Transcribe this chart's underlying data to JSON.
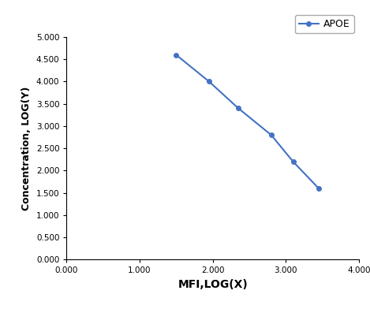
{
  "x": [
    1.5,
    1.95,
    2.35,
    2.8,
    3.1,
    3.45
  ],
  "y": [
    4.6,
    4.0,
    3.4,
    2.8,
    2.2,
    1.6
  ],
  "line_color": "#4472C4",
  "marker": "o",
  "marker_size": 4,
  "legend_label": "APOE",
  "xlabel": "MFI,LOG(X)",
  "ylabel": "Concentration, LOG(Y)",
  "xlim": [
    0.0,
    4.0
  ],
  "ylim": [
    0.0,
    5.0
  ],
  "xticks": [
    0.0,
    1.0,
    2.0,
    3.0,
    4.0
  ],
  "yticks": [
    0.0,
    0.5,
    1.0,
    1.5,
    2.0,
    2.5,
    3.0,
    3.5,
    4.0,
    4.5,
    5.0
  ],
  "background_color": "#ffffff",
  "line_width": 1.5,
  "tick_fontsize": 7.5,
  "xlabel_fontsize": 10,
  "ylabel_fontsize": 9,
  "legend_fontsize": 9
}
